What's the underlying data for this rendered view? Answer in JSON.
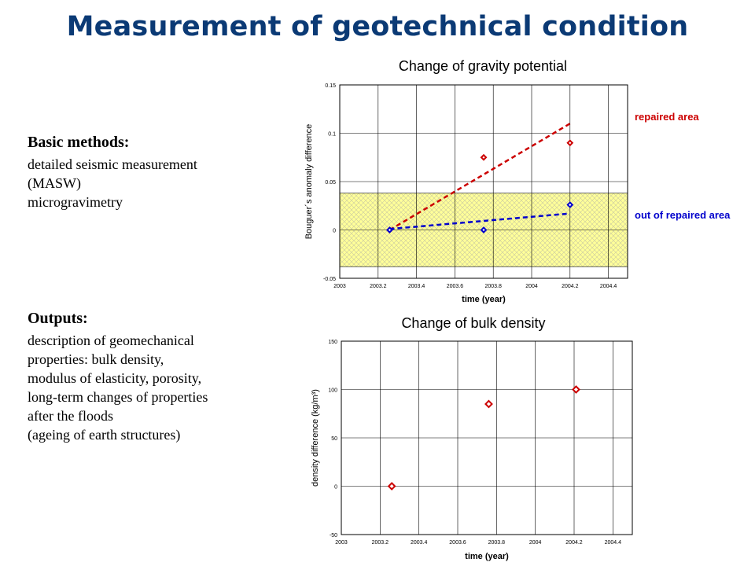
{
  "slide": {
    "title": "Measurement of geotechnical condition",
    "basic": {
      "heading": "Basic methods:",
      "lines": [
        "detailed seismic measurement",
        "(MASW)",
        "microgravimetry"
      ]
    },
    "outputs": {
      "heading": "Outputs:",
      "lines": [
        "description of geomechanical",
        "properties: bulk density,",
        "modulus of elasticity, porosity,",
        "long-term changes of properties",
        "after the floods",
        "(ageing of earth structures)"
      ]
    }
  },
  "chart_data": [
    {
      "type": "scatter",
      "title": "Change of gravity potential",
      "xlabel": "time (year)",
      "ylabel": "Bouguer´s anomaly difference",
      "xlim": [
        2003,
        2004.5
      ],
      "ylim": [
        -0.05,
        0.15
      ],
      "xticks": [
        "2003",
        "2003.2",
        "2003.4",
        "2003.6",
        "2003.8",
        "2004",
        "2004.2",
        "2004.4"
      ],
      "yticks": [
        "-0.05",
        "0",
        "0.05",
        "0.1",
        "0.15"
      ],
      "grid": true,
      "shaded_band": {
        "y_from": -0.038,
        "y_to": 0.038,
        "color": "#ffff99"
      },
      "series": [
        {
          "name": "repaired area",
          "color": "#cc0000",
          "x": [
            2003.26,
            2003.75,
            2004.2
          ],
          "y": [
            0.0,
            0.075,
            0.09
          ],
          "trend": {
            "x": [
              2003.26,
              2004.2
            ],
            "y": [
              0.0,
              0.11
            ]
          }
        },
        {
          "name": "out of repaired area",
          "color": "#0000cc",
          "x": [
            2003.26,
            2003.75,
            2004.2
          ],
          "y": [
            0.0,
            0.0,
            0.026
          ],
          "trend": {
            "x": [
              2003.26,
              2004.2
            ],
            "y": [
              0.001,
              0.017
            ]
          }
        }
      ]
    },
    {
      "type": "scatter",
      "title": "Change of bulk density",
      "xlabel": "time (year)",
      "ylabel": "density difference (kg/m³)",
      "xlim": [
        2003,
        2004.5
      ],
      "ylim": [
        -50,
        150
      ],
      "xticks": [
        "2003",
        "2003.2",
        "2003.4",
        "2003.6",
        "2003.8",
        "2004",
        "2004.2",
        "2004.4"
      ],
      "yticks": [
        "-50",
        "0",
        "50",
        "100",
        "150"
      ],
      "grid": true,
      "series": [
        {
          "color": "#cc0000",
          "x": [
            2003.26,
            2003.76,
            2004.21
          ],
          "y": [
            0,
            85,
            100
          ]
        }
      ]
    }
  ]
}
